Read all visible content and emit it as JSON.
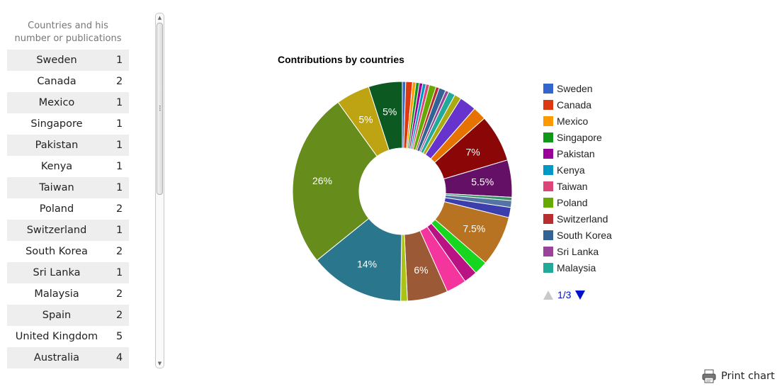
{
  "sidebar": {
    "title": "Countries and his number or publications",
    "rows": [
      {
        "name": "Sweden",
        "count": "1"
      },
      {
        "name": "Canada",
        "count": "2"
      },
      {
        "name": "Mexico",
        "count": "1"
      },
      {
        "name": "Singapore",
        "count": "1"
      },
      {
        "name": "Pakistan",
        "count": "1"
      },
      {
        "name": "Kenya",
        "count": "1"
      },
      {
        "name": "Taiwan",
        "count": "1"
      },
      {
        "name": "Poland",
        "count": "2"
      },
      {
        "name": "Switzerland",
        "count": "1"
      },
      {
        "name": "South Korea",
        "count": "2"
      },
      {
        "name": "Sri Lanka",
        "count": "1"
      },
      {
        "name": "Malaysia",
        "count": "2"
      },
      {
        "name": "Spain",
        "count": "2"
      },
      {
        "name": "United Kingdom",
        "count": "5"
      },
      {
        "name": "Australia",
        "count": "4"
      }
    ]
  },
  "chart_data": {
    "type": "pie",
    "title": "Contributions by countries",
    "donut": true,
    "legend_position": "right",
    "slices": [
      {
        "color": "#3366cc",
        "value": 0.5
      },
      {
        "color": "#dc3912",
        "value": 1.0
      },
      {
        "color": "#ff9900",
        "value": 0.5
      },
      {
        "color": "#109618",
        "value": 0.5
      },
      {
        "color": "#990099",
        "value": 0.5
      },
      {
        "color": "#0099c6",
        "value": 0.5
      },
      {
        "color": "#dd4477",
        "value": 0.5
      },
      {
        "color": "#66aa00",
        "value": 1.0
      },
      {
        "color": "#b82e2e",
        "value": 0.5
      },
      {
        "color": "#316395",
        "value": 1.0
      },
      {
        "color": "#994499",
        "value": 0.5
      },
      {
        "color": "#22aa99",
        "value": 1.0
      },
      {
        "color": "#aaaa11",
        "value": 1.0
      },
      {
        "color": "#6633cc",
        "value": 2.5
      },
      {
        "color": "#e67300",
        "value": 2.0
      },
      {
        "color": "#8b0707",
        "value": 7.0,
        "label": "7%"
      },
      {
        "color": "#651067",
        "value": 5.5,
        "label": "5.5%"
      },
      {
        "color": "#329262",
        "value": 0.5
      },
      {
        "color": "#5574a6",
        "value": 1.0
      },
      {
        "color": "#3b3eac",
        "value": 1.5
      },
      {
        "color": "#b77322",
        "value": 7.5,
        "label": "7.5%"
      },
      {
        "color": "#16d620",
        "value": 2.0
      },
      {
        "color": "#b91383",
        "value": 2.0
      },
      {
        "color": "#f4359e",
        "value": 3.0
      },
      {
        "color": "#9c5935",
        "value": 6.0,
        "label": "6%"
      },
      {
        "color": "#a9c413",
        "value": 1.0
      },
      {
        "color": "#2a778d",
        "value": 14.0,
        "label": "14%"
      },
      {
        "color": "#668d1c",
        "value": 26.0,
        "label": "26%"
      },
      {
        "color": "#bea413",
        "value": 5.0,
        "label": "5%"
      },
      {
        "color": "#0c5922",
        "value": 5.0,
        "label": "5%"
      }
    ],
    "legend": [
      {
        "name": "Sweden",
        "color": "#3366cc"
      },
      {
        "name": "Canada",
        "color": "#dc3912"
      },
      {
        "name": "Mexico",
        "color": "#ff9900"
      },
      {
        "name": "Singapore",
        "color": "#109618"
      },
      {
        "name": "Pakistan",
        "color": "#990099"
      },
      {
        "name": "Kenya",
        "color": "#0099c6"
      },
      {
        "name": "Taiwan",
        "color": "#dd4477"
      },
      {
        "name": "Poland",
        "color": "#66aa00"
      },
      {
        "name": "Switzerland",
        "color": "#b82e2e"
      },
      {
        "name": "South Korea",
        "color": "#316395"
      },
      {
        "name": "Sri Lanka",
        "color": "#994499"
      },
      {
        "name": "Malaysia",
        "color": "#22aa99"
      }
    ],
    "pager": "1/3"
  },
  "print_label": "Print chart"
}
